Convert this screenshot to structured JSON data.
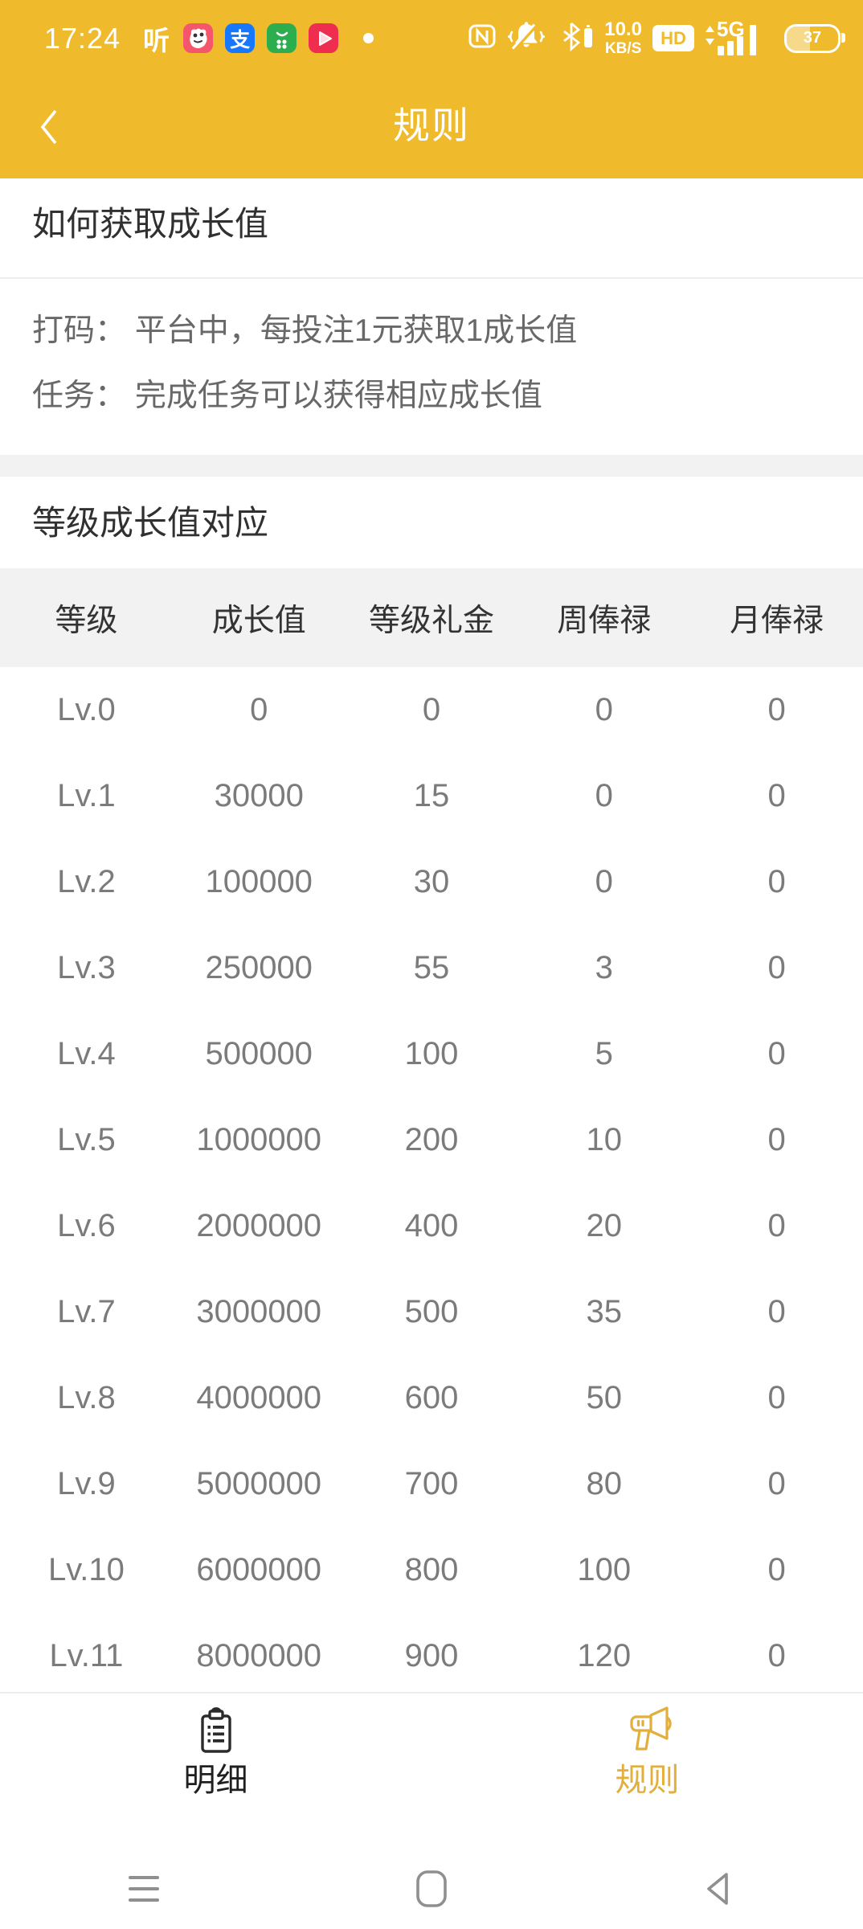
{
  "status_bar": {
    "time": "17:24",
    "listen_glyph": "听",
    "alipay_glyph": "支",
    "speed_value": "10.0",
    "speed_unit": "KB/S",
    "hd_label": "HD",
    "network_type": "5G",
    "battery_percent": "37"
  },
  "header": {
    "title": "规则"
  },
  "how_section": {
    "title": "如何获取成长值",
    "line1": "打码： 平台中，每投注1元获取1成长值",
    "line2": "任务： 完成任务可以获得相应成长值"
  },
  "levels_section": {
    "title": "等级成长值对应",
    "table": {
      "headers": [
        "等级",
        "成长值",
        "等级礼金",
        "周俸禄",
        "月俸禄"
      ],
      "rows": [
        [
          "Lv.0",
          "0",
          "0",
          "0",
          "0"
        ],
        [
          "Lv.1",
          "30000",
          "15",
          "0",
          "0"
        ],
        [
          "Lv.2",
          "100000",
          "30",
          "0",
          "0"
        ],
        [
          "Lv.3",
          "250000",
          "55",
          "3",
          "0"
        ],
        [
          "Lv.4",
          "500000",
          "100",
          "5",
          "0"
        ],
        [
          "Lv.5",
          "1000000",
          "200",
          "10",
          "0"
        ],
        [
          "Lv.6",
          "2000000",
          "400",
          "20",
          "0"
        ],
        [
          "Lv.7",
          "3000000",
          "500",
          "35",
          "0"
        ],
        [
          "Lv.8",
          "4000000",
          "600",
          "50",
          "0"
        ],
        [
          "Lv.9",
          "5000000",
          "700",
          "80",
          "0"
        ],
        [
          "Lv.10",
          "6000000",
          "800",
          "100",
          "0"
        ],
        [
          "Lv.11",
          "8000000",
          "900",
          "120",
          "0"
        ]
      ]
    }
  },
  "tab_bar": {
    "tabs": [
      {
        "label": "明细",
        "icon": "clipboard-icon",
        "active": false
      },
      {
        "label": "规则",
        "icon": "megaphone-icon",
        "active": true
      }
    ]
  },
  "colors": {
    "gold": "#EFBA2C",
    "tab_active_gold": "#E2AF3C",
    "alipay_blue": "#1677FF",
    "market_green": "#2CAE4F",
    "video_red": "#EF2D4E",
    "cartoon_pink": "#F4566B",
    "panel_gray": "#F2F2F3",
    "nav_gray": "#8A8A8A"
  }
}
